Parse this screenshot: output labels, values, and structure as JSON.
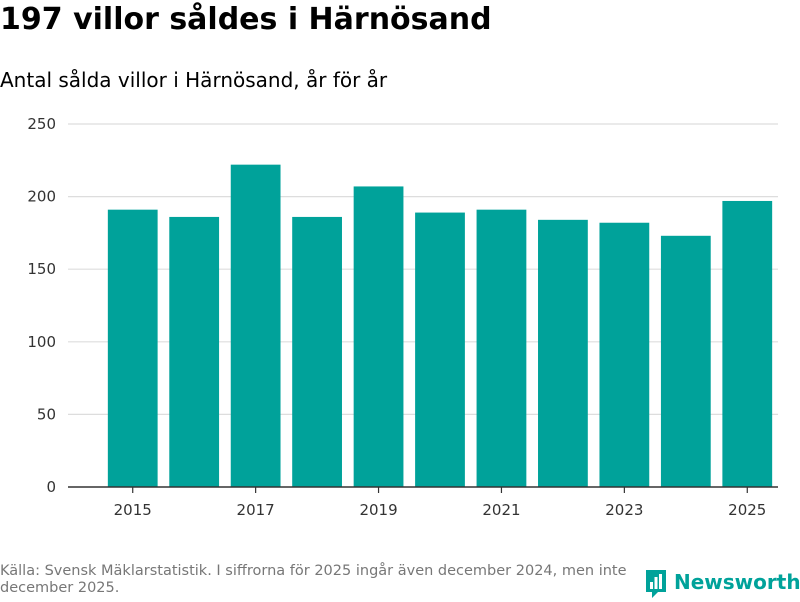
{
  "title": "197 villor såldes i Härnösand",
  "subtitle": "Antal sålda villor i Härnösand, år för år",
  "source": "Källa: Svensk Mäklarstatistik. I siffrorna för 2025 ingår även december 2024, men inte december 2025.",
  "brand": "Newsworthy",
  "colors": {
    "bar": "#00a29a",
    "grid": "#dddddd",
    "axis": "#333333",
    "brand": "#00a29a"
  },
  "chart_data": {
    "type": "bar",
    "title": "197 villor såldes i Härnösand",
    "subtitle": "Antal sålda villor i Härnösand, år för år",
    "categories": [
      "2015",
      "2016",
      "2017",
      "2018",
      "2019",
      "2020",
      "2021",
      "2022",
      "2023",
      "2024",
      "2025"
    ],
    "values": [
      191,
      186,
      222,
      186,
      207,
      189,
      191,
      184,
      182,
      173,
      197
    ],
    "xticks": [
      "2015",
      "2017",
      "2019",
      "2021",
      "2023",
      "2025"
    ],
    "yticks": [
      0,
      50,
      100,
      150,
      200,
      250
    ],
    "ylim": [
      0,
      250
    ],
    "xlabel": "",
    "ylabel": "",
    "grid": true
  }
}
